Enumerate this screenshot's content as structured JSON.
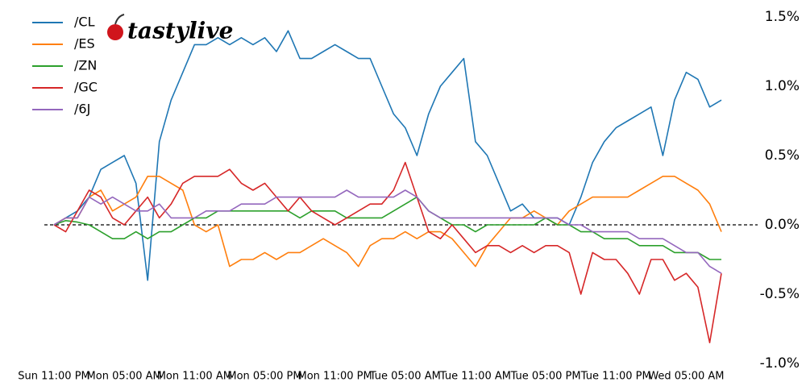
{
  "chart_data": {
    "type": "line",
    "logo": "tastylive",
    "categories": [
      "Sun 11:00 PM",
      null,
      null,
      null,
      null,
      null,
      "Mon 05:00 AM",
      null,
      null,
      null,
      null,
      null,
      "Mon 11:00 AM",
      null,
      null,
      null,
      null,
      null,
      "Mon 05:00 PM",
      null,
      null,
      null,
      null,
      null,
      "Mon 11:00 PM",
      null,
      null,
      null,
      null,
      null,
      "Tue 05:00 AM",
      null,
      null,
      null,
      null,
      null,
      "Tue 11:00 AM",
      null,
      null,
      null,
      null,
      null,
      "Tue 05:00 PM",
      null,
      null,
      null,
      null,
      null,
      "Tue 11:00 PM",
      null,
      null,
      null,
      null,
      null,
      "Wed 05:00 AM",
      null,
      null,
      null
    ],
    "series": [
      {
        "name": "/CL",
        "color": "#1f77b4",
        "values": [
          0,
          0.05,
          0.1,
          0.2,
          0.4,
          0.45,
          0.5,
          0.3,
          -0.4,
          0.6,
          0.9,
          1.1,
          1.3,
          1.3,
          1.35,
          1.3,
          1.35,
          1.3,
          1.35,
          1.25,
          1.4,
          1.2,
          1.2,
          1.25,
          1.3,
          1.25,
          1.2,
          1.2,
          1.0,
          0.8,
          0.7,
          0.5,
          0.8,
          1.0,
          1.1,
          1.2,
          0.6,
          0.5,
          0.3,
          0.1,
          0.15,
          0.05,
          0.05,
          0.05,
          0,
          0.2,
          0.45,
          0.6,
          0.7,
          0.75,
          0.8,
          0.85,
          0.5,
          0.9,
          1.1,
          1.05,
          0.85,
          0.9
        ]
      },
      {
        "name": "/ES",
        "color": "#ff7f0e",
        "values": [
          0,
          0.05,
          0.05,
          0.2,
          0.25,
          0.1,
          0.15,
          0.2,
          0.35,
          0.35,
          0.3,
          0.25,
          0,
          -0.05,
          0,
          -0.3,
          -0.25,
          -0.25,
          -0.2,
          -0.25,
          -0.2,
          -0.2,
          -0.15,
          -0.1,
          -0.15,
          -0.2,
          -0.3,
          -0.15,
          -0.1,
          -0.1,
          -0.05,
          -0.1,
          -0.05,
          -0.05,
          -0.1,
          -0.2,
          -0.3,
          -0.15,
          -0.05,
          0.05,
          0.05,
          0.1,
          0.05,
          0,
          0.1,
          0.15,
          0.2,
          0.2,
          0.2,
          0.2,
          0.25,
          0.3,
          0.35,
          0.35,
          0.3,
          0.25,
          0.15,
          -0.05
        ]
      },
      {
        "name": "/ZN",
        "color": "#2ca02c",
        "values": [
          0,
          0.03,
          0.02,
          0,
          -0.05,
          -0.1,
          -0.1,
          -0.05,
          -0.1,
          -0.05,
          -0.05,
          0,
          0.05,
          0.05,
          0.1,
          0.1,
          0.1,
          0.1,
          0.1,
          0.1,
          0.1,
          0.05,
          0.1,
          0.1,
          0.1,
          0.05,
          0.05,
          0.05,
          0.05,
          0.1,
          0.15,
          0.2,
          0.1,
          0.05,
          0,
          0,
          -0.05,
          0,
          0,
          0,
          0,
          0,
          0.05,
          0,
          0,
          -0.05,
          -0.05,
          -0.1,
          -0.1,
          -0.1,
          -0.15,
          -0.15,
          -0.15,
          -0.2,
          -0.2,
          -0.2,
          -0.25,
          -0.25
        ]
      },
      {
        "name": "/GC",
        "color": "#d62728",
        "values": [
          0,
          -0.05,
          0.1,
          0.25,
          0.2,
          0.05,
          0,
          0.1,
          0.2,
          0.05,
          0.15,
          0.3,
          0.35,
          0.35,
          0.35,
          0.4,
          0.3,
          0.25,
          0.3,
          0.2,
          0.1,
          0.2,
          0.1,
          0.05,
          0,
          0.05,
          0.1,
          0.15,
          0.15,
          0.25,
          0.45,
          0.2,
          -0.05,
          -0.1,
          0,
          -0.1,
          -0.2,
          -0.15,
          -0.15,
          -0.2,
          -0.15,
          -0.2,
          -0.15,
          -0.15,
          -0.2,
          -0.5,
          -0.2,
          -0.25,
          -0.25,
          -0.35,
          -0.5,
          -0.25,
          -0.25,
          -0.4,
          -0.35,
          -0.45,
          -0.85,
          -0.35
        ]
      },
      {
        "name": "/6J",
        "color": "#9467bd",
        "values": [
          0,
          0.05,
          0.05,
          0.2,
          0.15,
          0.2,
          0.15,
          0.1,
          0.1,
          0.15,
          0.05,
          0.05,
          0.05,
          0.1,
          0.1,
          0.1,
          0.15,
          0.15,
          0.15,
          0.2,
          0.2,
          0.2,
          0.2,
          0.2,
          0.2,
          0.25,
          0.2,
          0.2,
          0.2,
          0.2,
          0.25,
          0.2,
          0.1,
          0.05,
          0.05,
          0.05,
          0.05,
          0.05,
          0.05,
          0.05,
          0.05,
          0.05,
          0.05,
          0.05,
          0,
          0,
          -0.05,
          -0.05,
          -0.05,
          -0.05,
          -0.1,
          -0.1,
          -0.1,
          -0.15,
          -0.2,
          -0.2,
          -0.3,
          -0.35
        ]
      }
    ],
    "ylim": [
      -1.0,
      1.5
    ],
    "yticks": [
      {
        "value": 1.5,
        "label": "1.5%"
      },
      {
        "value": 1.0,
        "label": "1.0%"
      },
      {
        "value": 0.5,
        "label": "0.5%"
      },
      {
        "value": 0,
        "label": "0.0%"
      },
      {
        "value": -0.5,
        "label": "-0.5%"
      },
      {
        "value": -1.0,
        "label": "-1.0%"
      }
    ],
    "hline": 0,
    "grid": false,
    "legend": "upper left"
  }
}
